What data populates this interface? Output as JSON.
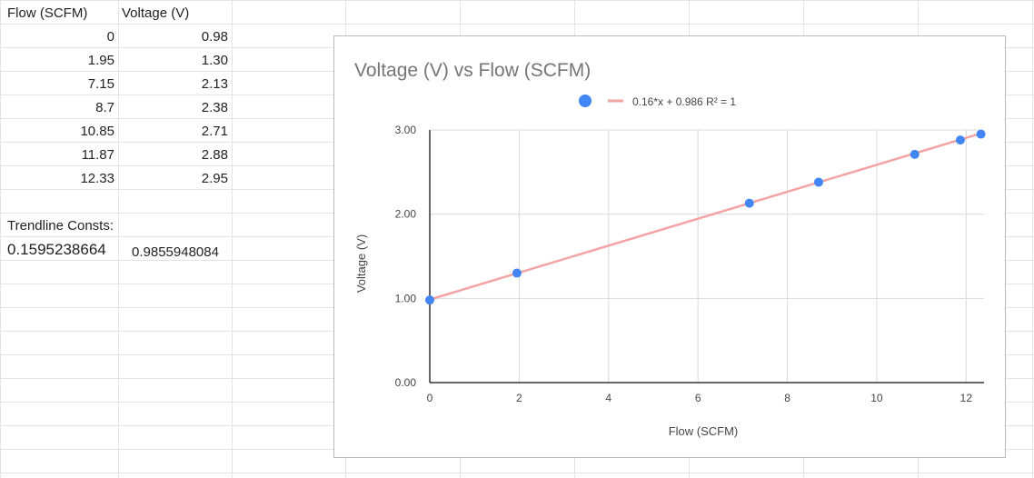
{
  "sheet": {
    "headers": [
      "Flow (SCFM)",
      "Voltage (V)"
    ],
    "rows": [
      [
        "0",
        "0.98"
      ],
      [
        "1.95",
        "1.30"
      ],
      [
        "7.15",
        "2.13"
      ],
      [
        "8.7",
        "2.38"
      ],
      [
        "10.85",
        "2.71"
      ],
      [
        "11.87",
        "2.88"
      ],
      [
        "12.33",
        "2.95"
      ]
    ],
    "trendline_label": "Trendline Consts:",
    "slope": "0.1595238664",
    "intercept": "0.9855948084"
  },
  "chart_data": {
    "type": "scatter",
    "title": "Voltage (V) vs Flow (SCFM)",
    "xlabel": "Flow (SCFM)",
    "ylabel": "Voltage (V)",
    "xlim": [
      0,
      12.4
    ],
    "ylim": [
      0,
      3
    ],
    "x_ticks": [
      "0",
      "2",
      "4",
      "6",
      "8",
      "10",
      "12"
    ],
    "y_ticks": [
      "0.00",
      "1.00",
      "2.00",
      "3.00"
    ],
    "x": [
      0,
      1.95,
      7.15,
      8.7,
      10.85,
      11.87,
      12.33
    ],
    "y": [
      0.98,
      1.3,
      2.13,
      2.38,
      2.71,
      2.88,
      2.95
    ],
    "trendline": {
      "slope": 0.16,
      "intercept": 0.986,
      "label": "0.16*x + 0.986 R² = 1"
    },
    "legend_position": "top",
    "grid": true,
    "point_color": "#4285f4",
    "trend_color": "#f4a3a3"
  }
}
